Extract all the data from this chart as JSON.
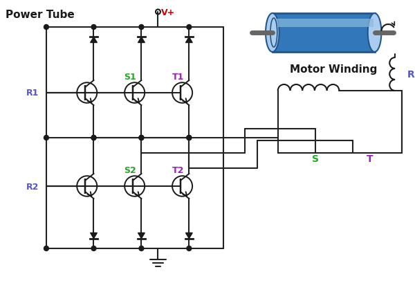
{
  "bg_color": "#ffffff",
  "label_power_tube": "Power Tube",
  "label_motor_winding": "Motor Winding",
  "label_vplus": "V+",
  "label_s1": "S1",
  "label_t1": "T1",
  "label_s2": "S2",
  "label_t2": "T2",
  "label_r1": "R1",
  "label_r2": "R2",
  "label_r": "R",
  "label_s": "S",
  "label_t": "T",
  "color_r_blue": "#5555cc",
  "color_s_green": "#22aa22",
  "color_t_purple": "#9922bb",
  "color_red": "#cc0000",
  "color_black": "#1a1a1a",
  "color_wire": "#222222",
  "color_motor_blue": "#3377bb",
  "color_motor_light": "#88bbdd",
  "color_motor_cap": "#aaccee",
  "color_motor_shaft": "#666666",
  "color_motor_body_dark": "#225588"
}
